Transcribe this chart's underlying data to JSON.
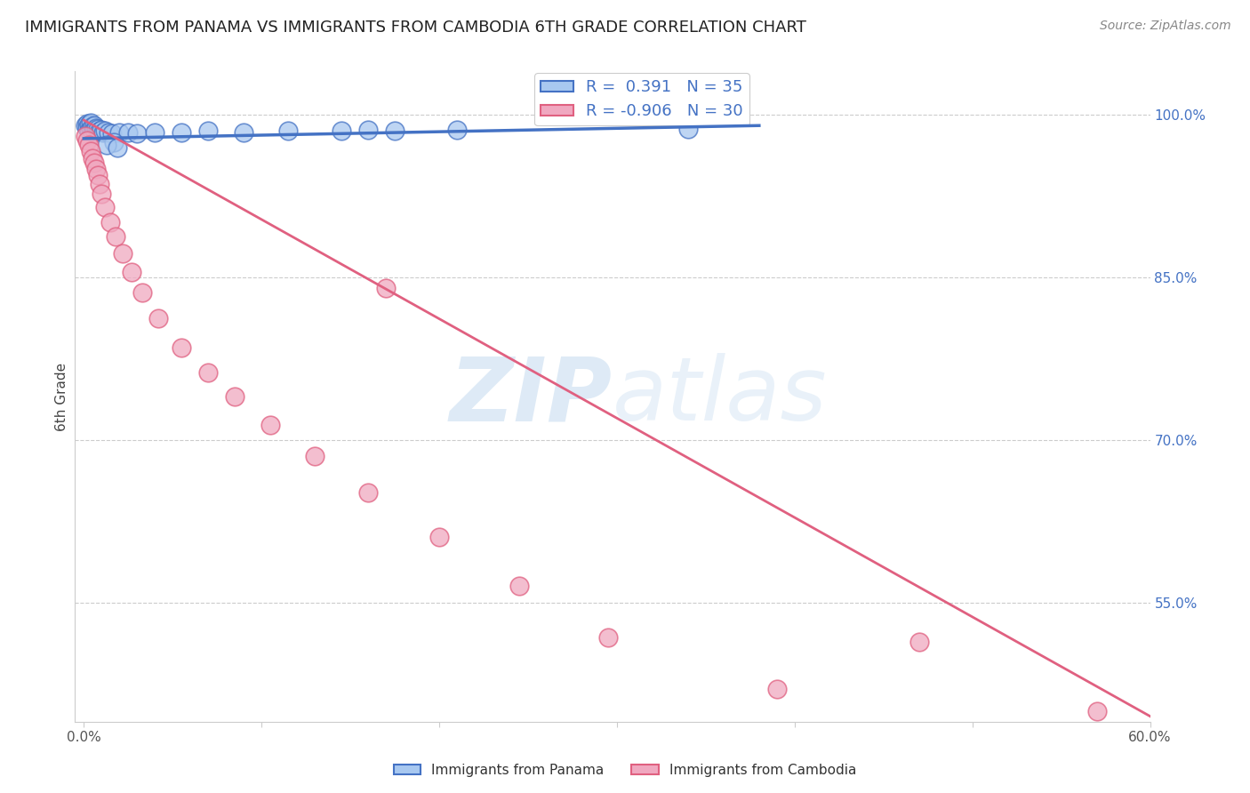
{
  "title": "IMMIGRANTS FROM PANAMA VS IMMIGRANTS FROM CAMBODIA 6TH GRADE CORRELATION CHART",
  "source": "Source: ZipAtlas.com",
  "ylabel": "6th Grade",
  "xlim": [
    0.0,
    0.6
  ],
  "ylim": [
    0.44,
    1.04
  ],
  "yticks_right": [
    1.0,
    0.85,
    0.7,
    0.55
  ],
  "ytick_right_labels": [
    "100.0%",
    "85.0%",
    "70.0%",
    "55.0%"
  ],
  "panama_R": 0.391,
  "panama_N": 35,
  "cambodia_R": -0.906,
  "cambodia_N": 30,
  "panama_color": "#a8c8f0",
  "panama_line_color": "#4472C4",
  "cambodia_color": "#f0a8c0",
  "cambodia_line_color": "#e06080",
  "watermark_zip": "ZIP",
  "watermark_atlas": "atlas",
  "background_color": "#ffffff",
  "grid_color": "#cccccc",
  "panama_x": [
    0.001,
    0.002,
    0.002,
    0.003,
    0.003,
    0.004,
    0.004,
    0.005,
    0.005,
    0.006,
    0.006,
    0.007,
    0.008,
    0.009,
    0.01,
    0.011,
    0.012,
    0.014,
    0.016,
    0.02,
    0.025,
    0.03,
    0.04,
    0.055,
    0.07,
    0.09,
    0.115,
    0.145,
    0.175,
    0.21,
    0.017,
    0.013,
    0.019,
    0.16,
    0.34
  ],
  "panama_y": [
    0.99,
    0.992,
    0.988,
    0.991,
    0.985,
    0.993,
    0.987,
    0.989,
    0.984,
    0.99,
    0.986,
    0.988,
    0.987,
    0.985,
    0.986,
    0.984,
    0.985,
    0.984,
    0.983,
    0.984,
    0.984,
    0.983,
    0.984,
    0.984,
    0.985,
    0.984,
    0.985,
    0.985,
    0.985,
    0.986,
    0.975,
    0.972,
    0.97,
    0.986,
    0.987
  ],
  "cambodia_x": [
    0.001,
    0.002,
    0.003,
    0.004,
    0.005,
    0.006,
    0.007,
    0.008,
    0.009,
    0.01,
    0.012,
    0.015,
    0.018,
    0.022,
    0.027,
    0.033,
    0.042,
    0.055,
    0.07,
    0.085,
    0.105,
    0.13,
    0.16,
    0.2,
    0.245,
    0.295,
    0.17,
    0.39,
    0.47,
    0.57
  ],
  "cambodia_y": [
    0.98,
    0.976,
    0.972,
    0.966,
    0.96,
    0.956,
    0.95,
    0.944,
    0.936,
    0.927,
    0.915,
    0.901,
    0.888,
    0.872,
    0.855,
    0.836,
    0.812,
    0.785,
    0.762,
    0.74,
    0.714,
    0.685,
    0.651,
    0.61,
    0.565,
    0.518,
    0.84,
    0.47,
    0.514,
    0.45
  ],
  "panama_trend_x": [
    0.0,
    0.38
  ],
  "panama_trend_y": [
    0.978,
    0.99
  ],
  "cambodia_trend_x": [
    0.0,
    0.6
  ],
  "cambodia_trend_y": [
    0.995,
    0.445
  ]
}
